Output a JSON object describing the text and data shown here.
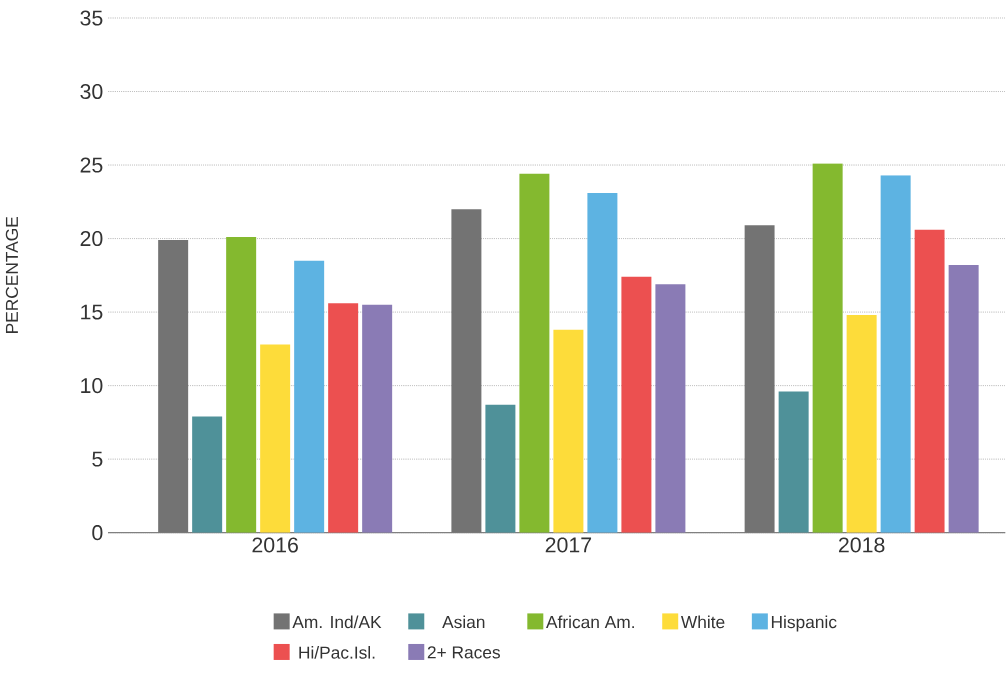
{
  "chart_data": {
    "type": "bar",
    "ylabel": "PERCENTAGE",
    "categories": [
      "2016",
      "2017",
      "2018"
    ],
    "ylim": [
      0,
      35
    ],
    "yticks": [
      0,
      5,
      10,
      15,
      20,
      25,
      30,
      35
    ],
    "grid": "y",
    "legend": "bottom",
    "series": [
      {
        "name": "Am. Ind/AK",
        "color": "#737373",
        "values": [
          19.9,
          22.0,
          20.9
        ]
      },
      {
        "name": "Asian",
        "color": "#4f9199",
        "values": [
          7.9,
          8.7,
          9.6
        ]
      },
      {
        "name": "African Am.",
        "color": "#84b92f",
        "values": [
          20.1,
          24.4,
          25.1
        ]
      },
      {
        "name": "White",
        "color": "#fddc3a",
        "values": [
          12.8,
          13.8,
          14.8
        ]
      },
      {
        "name": "Hispanic",
        "color": "#5db3e2",
        "values": [
          18.5,
          23.1,
          24.3
        ]
      },
      {
        "name": "Hi/Pac.Isl.",
        "color": "#ec5050",
        "values": [
          15.6,
          17.4,
          20.6
        ]
      },
      {
        "name": "2+ Races",
        "color": "#8a7bb5",
        "values": [
          15.5,
          16.9,
          18.2
        ]
      }
    ]
  }
}
